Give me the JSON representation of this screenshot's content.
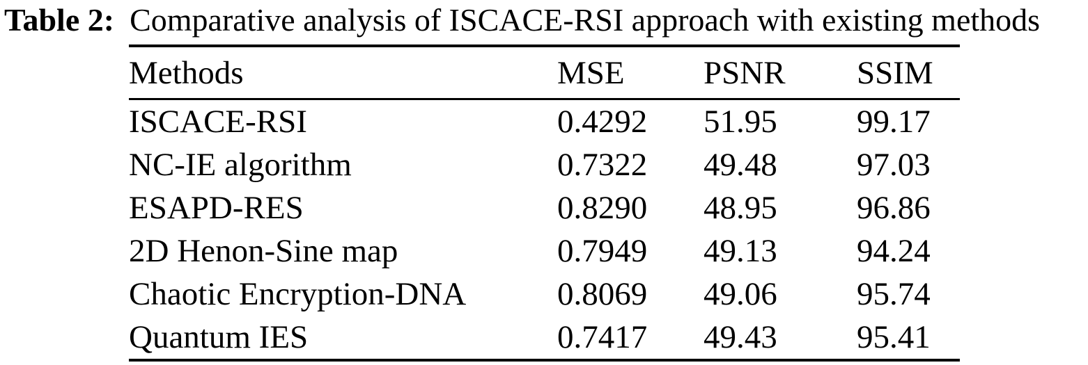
{
  "caption": {
    "label": "Table 2:",
    "text": "Comparative analysis of ISCACE-RSI approach with existing methods"
  },
  "colors": {
    "text": "#000000",
    "background": "#ffffff",
    "rule": "#000000"
  },
  "chart_data": {
    "type": "table",
    "title": "Table 2: Comparative analysis of ISCACE-RSI approach with existing methods",
    "columns": [
      "Methods",
      "MSE",
      "PSNR",
      "SSIM"
    ],
    "rows": [
      {
        "method": "ISCACE-RSI",
        "mse": "0.4292",
        "psnr": "51.95",
        "ssim": "99.17"
      },
      {
        "method": "NC-IE algorithm",
        "mse": "0.7322",
        "psnr": "49.48",
        "ssim": "97.03"
      },
      {
        "method": "ESAPD-RES",
        "mse": "0.8290",
        "psnr": "48.95",
        "ssim": "96.86"
      },
      {
        "method": "2D Henon-Sine map",
        "mse": "0.7949",
        "psnr": "49.13",
        "ssim": "94.24"
      },
      {
        "method": "Chaotic Encryption-DNA",
        "mse": "0.8069",
        "psnr": "49.06",
        "ssim": "95.74"
      },
      {
        "method": "Quantum IES",
        "mse": "0.7417",
        "psnr": "49.43",
        "ssim": "95.41"
      }
    ]
  }
}
